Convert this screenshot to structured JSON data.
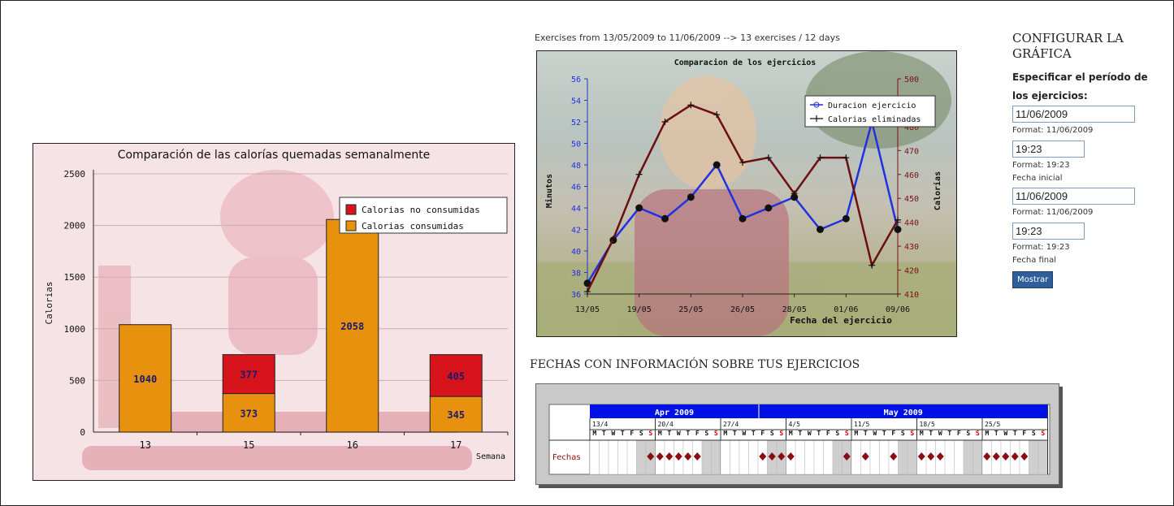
{
  "weekly_chart": {
    "chart_data": {
      "type": "bar",
      "title": "Comparación de las calorías quemadas semanalmente",
      "xlabel": "Semana",
      "ylabel": "Calorias",
      "categories": [
        "13",
        "15",
        "16",
        "17"
      ],
      "ylim": [
        0,
        2500
      ],
      "yticks": [
        0,
        500,
        1000,
        1500,
        2000,
        2500
      ],
      "stacked": true,
      "legend_position": "top-right",
      "series": [
        {
          "name": "Calorias consumidas",
          "color": "#e8910f",
          "values": [
            1040,
            373,
            2058,
            345
          ],
          "labels": [
            "1040",
            "373",
            "2058",
            "345"
          ]
        },
        {
          "name": "Calorias no consumidas",
          "color": "#d7131c",
          "values": [
            0,
            377,
            0,
            405
          ],
          "labels": [
            "",
            "377",
            "",
            "405"
          ]
        }
      ]
    }
  },
  "exercise_chart": {
    "caption": "Exercises from 13/05/2009 to 11/06/2009 --> 13 exercises / 12 days",
    "chart_data": {
      "type": "line",
      "title": "Comparacion de los ejercicios",
      "xlabel": "Fecha del ejercicio",
      "ylabel_left": "Minutos",
      "ylabel_right": "Calorias",
      "x_tick_labels": [
        "13/05",
        "19/05",
        "25/05",
        "26/05",
        "28/05",
        "01/06",
        "09/06"
      ],
      "ylim_left": [
        36,
        56
      ],
      "yticks_left": [
        36,
        38,
        40,
        42,
        44,
        46,
        48,
        50,
        52,
        54,
        56
      ],
      "ylim_right": [
        410,
        500
      ],
      "yticks_right": [
        410,
        420,
        430,
        440,
        450,
        460,
        470,
        480,
        490,
        500
      ],
      "legend_position": "top-right",
      "series": [
        {
          "name": "Duracion ejercicio",
          "axis": "left",
          "color": "#1f31e0",
          "values": [
            37,
            41,
            44,
            43,
            45,
            48,
            43,
            44,
            45,
            42,
            43,
            52,
            42
          ]
        },
        {
          "name": "Calorias eliminadas",
          "axis": "right",
          "color": "#6b0f10",
          "values": [
            411,
            433,
            460,
            482,
            489,
            485,
            465,
            467,
            452,
            467,
            467,
            422,
            441
          ]
        }
      ]
    }
  },
  "calendar": {
    "title": "FECHAS CON INFORMACIÓN SOBRE TUS EJERCICIOS",
    "months": [
      "Apr 2009",
      "May 2009"
    ],
    "weeks": [
      "13/4",
      "20/4",
      "27/4",
      "4/5",
      "11/5",
      "18/5",
      "25/5"
    ],
    "day_letters": [
      "M",
      "T",
      "W",
      "T",
      "F",
      "S",
      "S"
    ],
    "row_label": "Fechas",
    "marks": [
      [
        6
      ],
      [
        0,
        1,
        2,
        3,
        4
      ],
      [
        4,
        5,
        6
      ],
      [
        0,
        6
      ],
      [
        1,
        4
      ],
      [
        0,
        1,
        2
      ],
      [
        0,
        1,
        2,
        3,
        4
      ]
    ]
  },
  "config": {
    "title": "CONFIGURAR LA GRÁFICA",
    "subtitle": "Especificar el período de los ejercicios:",
    "start_date": "11/06/2009",
    "start_date_format": "Format: 11/06/2009",
    "start_time": "19:23",
    "start_time_format": "Format: 19:23",
    "start_label": "Fecha inicial",
    "end_date": "11/06/2009",
    "end_date_format": "Format: 11/06/2009",
    "end_time": "19:23",
    "end_time_format": "Format: 19:23",
    "end_label": "Fecha final",
    "submit_label": "Mostrar"
  }
}
